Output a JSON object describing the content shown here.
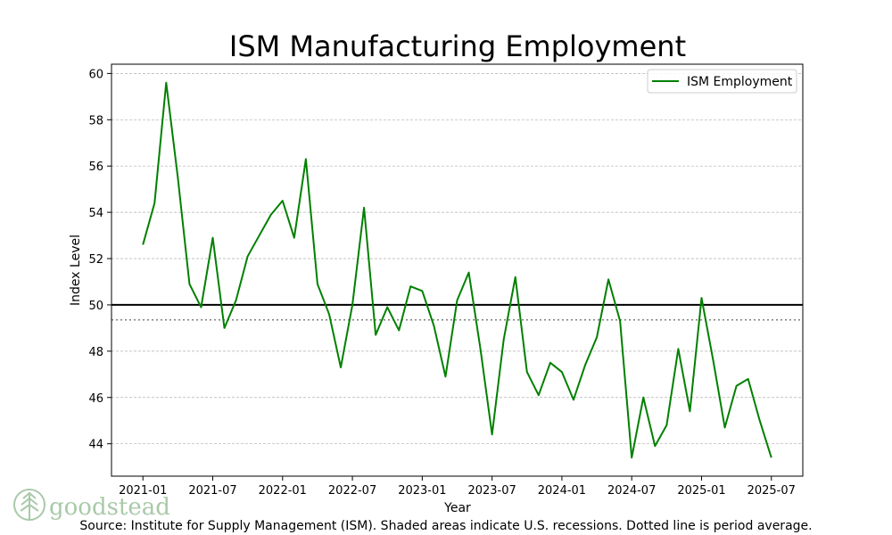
{
  "chart_data": {
    "type": "line",
    "title": "ISM Manufacturing Employment",
    "xlabel": "Year",
    "ylabel": "Index Level",
    "ylim": [
      42.6,
      60.4
    ],
    "yticks": [
      44,
      46,
      48,
      50,
      52,
      54,
      56,
      58,
      60
    ],
    "ytick_labels": [
      "44",
      "46",
      "48",
      "50",
      "52",
      "54",
      "56",
      "58",
      "60"
    ],
    "xticks": [
      0,
      6,
      12,
      18,
      24,
      30,
      36,
      42,
      48,
      54
    ],
    "xtick_labels": [
      "2021-01",
      "2021-07",
      "2022-01",
      "2022-07",
      "2023-01",
      "2023-07",
      "2024-01",
      "2024-07",
      "2025-01",
      "2025-07"
    ],
    "xlim": [
      -2.7,
      56.7
    ],
    "grid": true,
    "reference_line": 50,
    "average_line": 49.35,
    "legend_position": "top-right",
    "series": [
      {
        "name": "ISM Employment",
        "color": "#008000",
        "x": [
          0,
          1,
          2,
          3,
          4,
          5,
          6,
          7,
          8,
          9,
          10,
          11,
          12,
          13,
          14,
          15,
          16,
          17,
          18,
          19,
          20,
          21,
          22,
          23,
          24,
          25,
          26,
          27,
          28,
          29,
          30,
          31,
          32,
          33,
          34,
          35,
          36,
          37,
          38,
          39,
          40,
          41,
          42,
          43,
          44,
          45,
          46,
          47,
          48,
          49,
          50,
          51,
          52,
          53,
          54
        ],
        "values": [
          52.6,
          54.4,
          59.6,
          55.5,
          50.9,
          49.9,
          52.9,
          49.0,
          50.2,
          52.1,
          53.0,
          53.9,
          54.5,
          52.9,
          56.3,
          50.9,
          49.6,
          47.3,
          50.0,
          54.2,
          48.7,
          49.9,
          48.9,
          50.8,
          50.6,
          49.1,
          46.9,
          50.2,
          51.4,
          48.1,
          44.4,
          48.5,
          51.2,
          47.1,
          46.1,
          47.5,
          47.1,
          45.9,
          47.4,
          48.6,
          51.1,
          49.3,
          43.4,
          46.0,
          43.9,
          44.8,
          48.1,
          45.4,
          50.3,
          47.6,
          44.7,
          46.5,
          46.8,
          45.0,
          43.4
        ]
      }
    ],
    "source": "Source:  Institute for Supply Management (ISM). Shaded areas indicate U.S. recessions. Dotted line is period average."
  },
  "branding": {
    "logo_text": "goodstead"
  },
  "colors": {
    "series": "#008000",
    "grid": "#b0b0b0",
    "reference": "#000000",
    "average": "#808080",
    "logo": "#a9c9a9"
  }
}
